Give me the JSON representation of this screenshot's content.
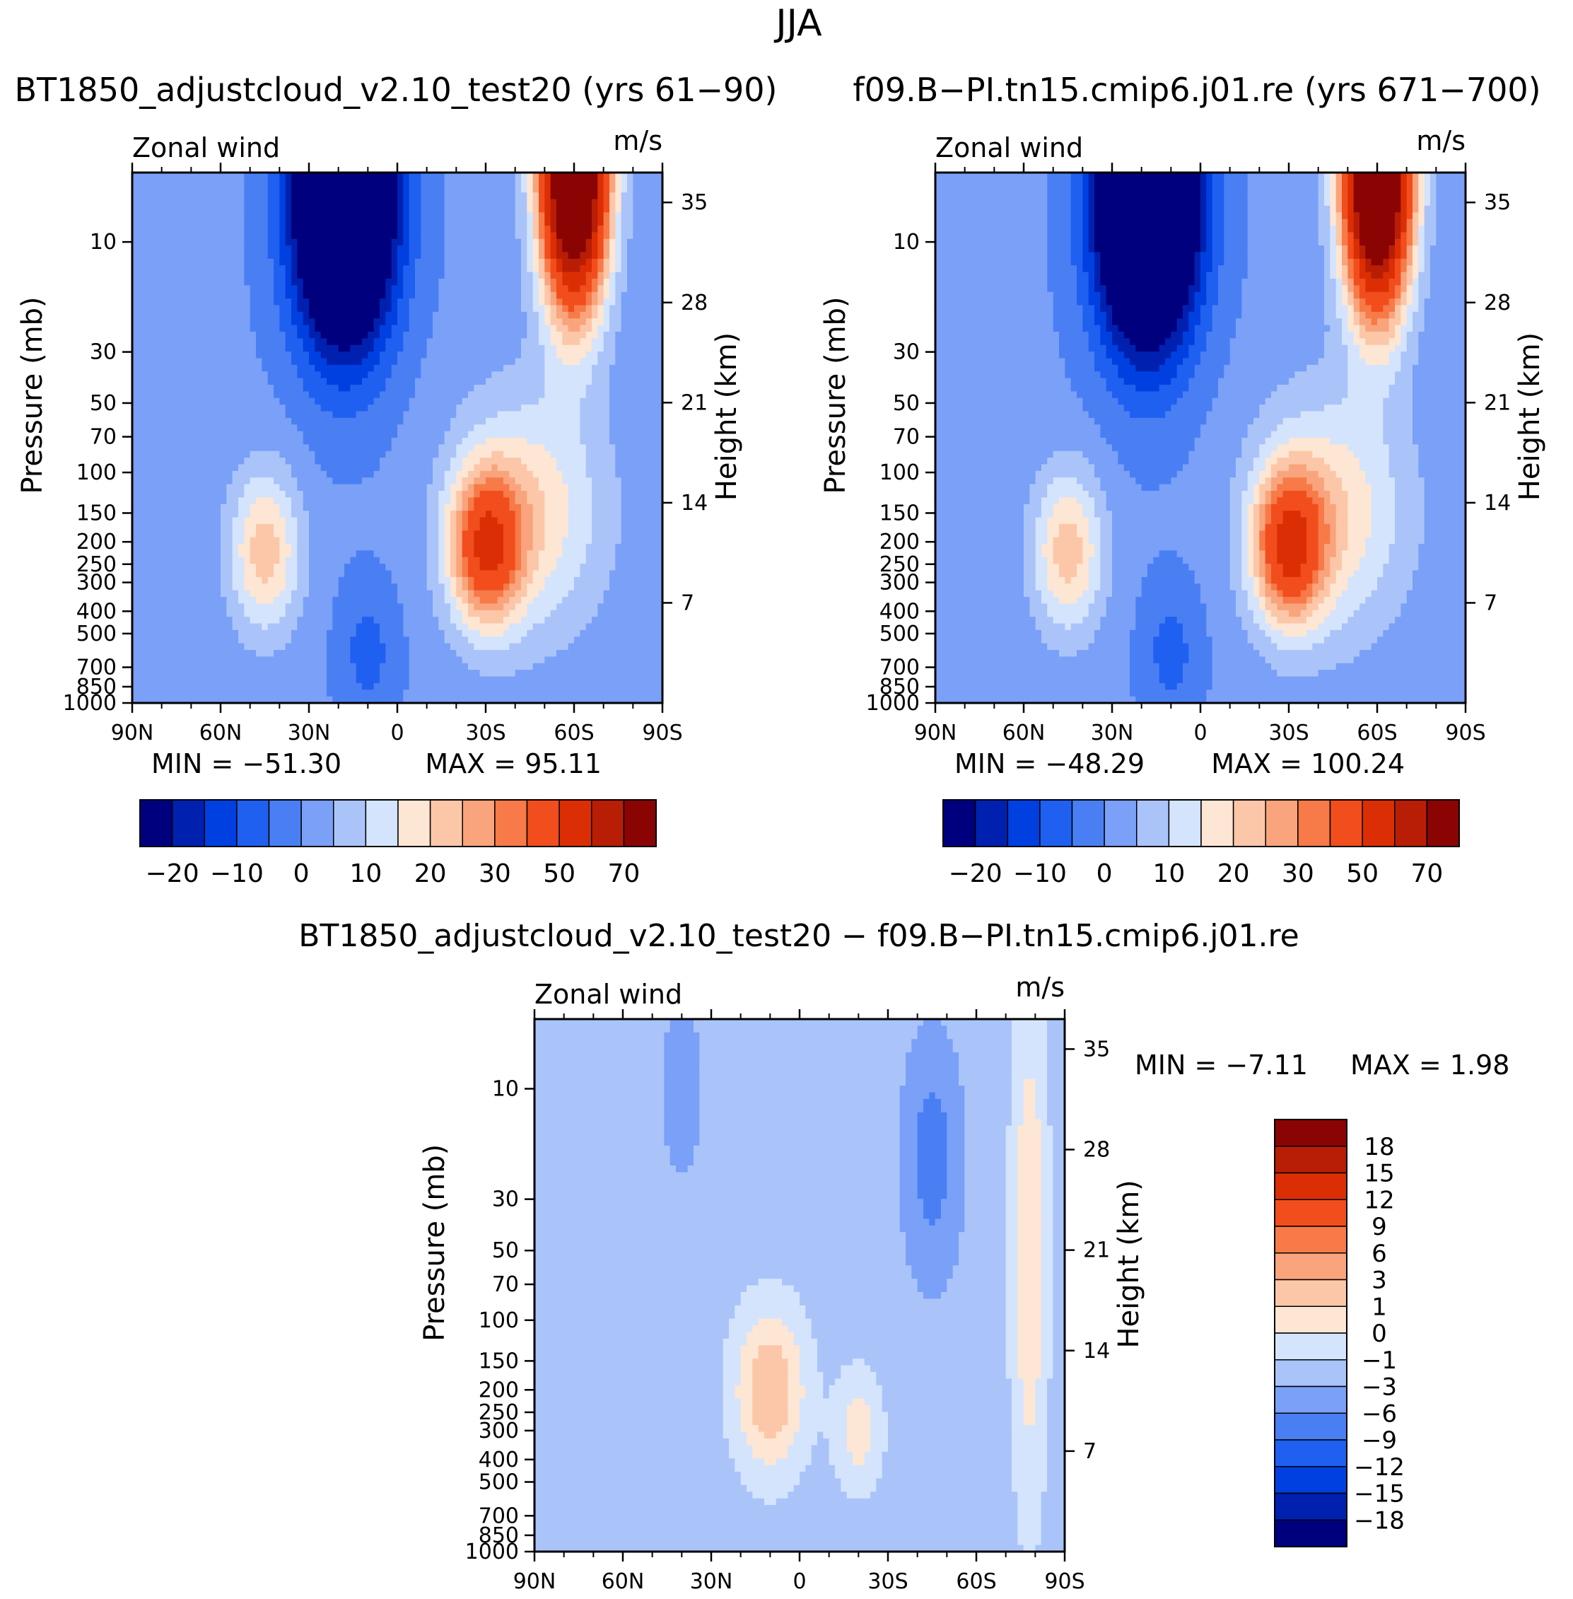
{
  "figure": {
    "season": "JJA",
    "diff_title": "BT1850_adjustcloud_v2.10_test20 − f09.B−PI.tn15.cmip6.j01.re"
  },
  "chart_data": [
    {
      "type": "heatmap",
      "panel": "left",
      "title": "BT1850_adjustcloud_v2.10_test20 (yrs 61−90)",
      "left_label": "Zonal wind",
      "right_label": "m/s",
      "ylabel": "Pressure (mb)",
      "y2label": "Height (km)",
      "x_ticks": [
        "90N",
        "60N",
        "30N",
        "0",
        "30S",
        "60S",
        "90S"
      ],
      "y_ticks": [
        "10",
        "30",
        "50",
        "70",
        "100",
        "150",
        "200",
        "250",
        "300",
        "400",
        "500",
        "700",
        "850",
        "1000"
      ],
      "y2_ticks": [
        "35",
        "28",
        "21",
        "14",
        "7"
      ],
      "min_text": "MIN = −51.30",
      "max_text": "MAX = 95.11",
      "min": -51.3,
      "max": 95.11,
      "colorbar_labels": [
        "−20",
        "−10",
        "0",
        "10",
        "20",
        "30",
        "50",
        "70"
      ]
    },
    {
      "type": "heatmap",
      "panel": "right",
      "title": "f09.B−PI.tn15.cmip6.j01.re (yrs 671−700)",
      "left_label": "Zonal wind",
      "right_label": "m/s",
      "ylabel": "Pressure (mb)",
      "y2label": "Height (km)",
      "x_ticks": [
        "90N",
        "60N",
        "30N",
        "0",
        "30S",
        "60S",
        "90S"
      ],
      "y_ticks": [
        "10",
        "30",
        "50",
        "70",
        "100",
        "150",
        "200",
        "250",
        "300",
        "400",
        "500",
        "700",
        "850",
        "1000"
      ],
      "y2_ticks": [
        "35",
        "28",
        "21",
        "14",
        "7"
      ],
      "min_text": "MIN = −48.29",
      "max_text": "MAX = 100.24",
      "min": -48.29,
      "max": 100.24,
      "colorbar_labels": [
        "−20",
        "−10",
        "0",
        "10",
        "20",
        "30",
        "50",
        "70"
      ]
    },
    {
      "type": "heatmap",
      "panel": "difference",
      "title": "BT1850_adjustcloud_v2.10_test20 − f09.B−PI.tn15.cmip6.j01.re",
      "left_label": "Zonal wind",
      "right_label": "m/s",
      "ylabel": "Pressure (mb)",
      "y2label": "Height (km)",
      "x_ticks": [
        "90N",
        "60N",
        "30N",
        "0",
        "30S",
        "60S",
        "90S"
      ],
      "y_ticks": [
        "10",
        "30",
        "50",
        "70",
        "100",
        "150",
        "200",
        "250",
        "300",
        "400",
        "500",
        "700",
        "850",
        "1000"
      ],
      "y2_ticks": [
        "35",
        "28",
        "21",
        "14",
        "7"
      ],
      "min_text": "MIN = −7.11",
      "max_text": "MAX = 1.98",
      "min": -7.11,
      "max": 1.98,
      "colorbar_labels": [
        "18",
        "15",
        "12",
        "9",
        "6",
        "3",
        "1",
        "0",
        "−1",
        "−3",
        "−6",
        "−9",
        "−12",
        "−15",
        "−18"
      ]
    }
  ],
  "palette": [
    "#00007f",
    "#0021b0",
    "#0040e0",
    "#2060f0",
    "#4a7ff4",
    "#7aa0f7",
    "#aac4fa",
    "#d4e4fc",
    "#fde6d4",
    "#fcc7a8",
    "#f9a47c",
    "#f77a48",
    "#f24d1c",
    "#dc2e04",
    "#b81e06",
    "#8a0404"
  ]
}
